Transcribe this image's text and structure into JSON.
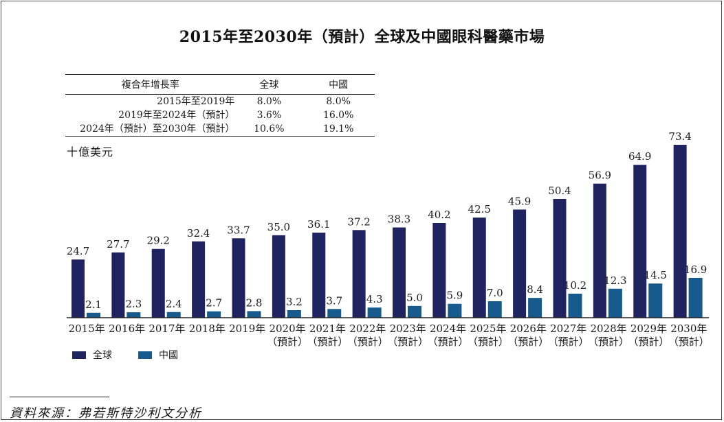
{
  "title": "2015年至2030年（預計）全球及中國眼科醫藥市場",
  "cagr_table": {
    "headers": [
      "複合年增長率",
      "全球",
      "中國"
    ],
    "rows": [
      {
        "period": "2015年至2019年",
        "global": "8.0%",
        "china": "8.0%"
      },
      {
        "period": "2019年至2024年（預計）",
        "global": "3.6%",
        "china": "16.0%"
      },
      {
        "period": "2024年（預計）至2030年（預計）",
        "global": "10.6%",
        "china": "19.1%"
      }
    ]
  },
  "unit_label": "十億美元",
  "legend": {
    "global": "全球",
    "china": "中國"
  },
  "source": "資料來源：弗若斯特沙利文分析",
  "colors": {
    "global": "#1f2460",
    "china": "#165a8e"
  },
  "chart_data": {
    "type": "bar",
    "categories": [
      "2015年",
      "2016年",
      "2017年",
      "2018年",
      "2019年",
      "2020年",
      "2021年",
      "2022年",
      "2023年",
      "2024年",
      "2025年",
      "2026年",
      "2027年",
      "2028年",
      "2029年",
      "2030年"
    ],
    "category_notes": [
      "",
      "",
      "",
      "",
      "",
      "（預計）",
      "（預計）",
      "（預計）",
      "（預計）",
      "（預計）",
      "（預計）",
      "（預計）",
      "（預計）",
      "（預計）",
      "（預計）",
      "（預計）"
    ],
    "series": [
      {
        "name": "全球",
        "values": [
          24.7,
          27.7,
          29.2,
          32.4,
          33.7,
          35.0,
          36.1,
          37.2,
          38.3,
          40.2,
          42.5,
          45.9,
          50.4,
          56.9,
          64.9,
          73.4
        ]
      },
      {
        "name": "中國",
        "values": [
          2.1,
          2.3,
          2.4,
          2.7,
          2.8,
          3.2,
          3.7,
          4.3,
          5.0,
          5.9,
          7.0,
          8.4,
          10.2,
          12.3,
          14.5,
          16.9
        ]
      }
    ],
    "value_labels": {
      "全球": [
        "24.7",
        "27.7",
        "29.2",
        "32.4",
        "33.7",
        "35.0",
        "36.1",
        "37.2",
        "38.3",
        "40.2",
        "42.5",
        "45.9",
        "50.4",
        "56.9",
        "64.9",
        "73.4"
      ],
      "中國": [
        "2.1",
        "2.3",
        "2.4",
        "2.7",
        "2.8",
        "3.2",
        "3.7",
        "4.3",
        "5.0",
        "5.9",
        "7.0",
        "8.4",
        "10.2",
        "12.3",
        "14.5",
        "16.9"
      ]
    },
    "ylabel": "十億美元",
    "ylim": [
      0,
      73.4
    ],
    "grid": false,
    "y_axis_visible": false,
    "legend_position": "bottom-left"
  }
}
